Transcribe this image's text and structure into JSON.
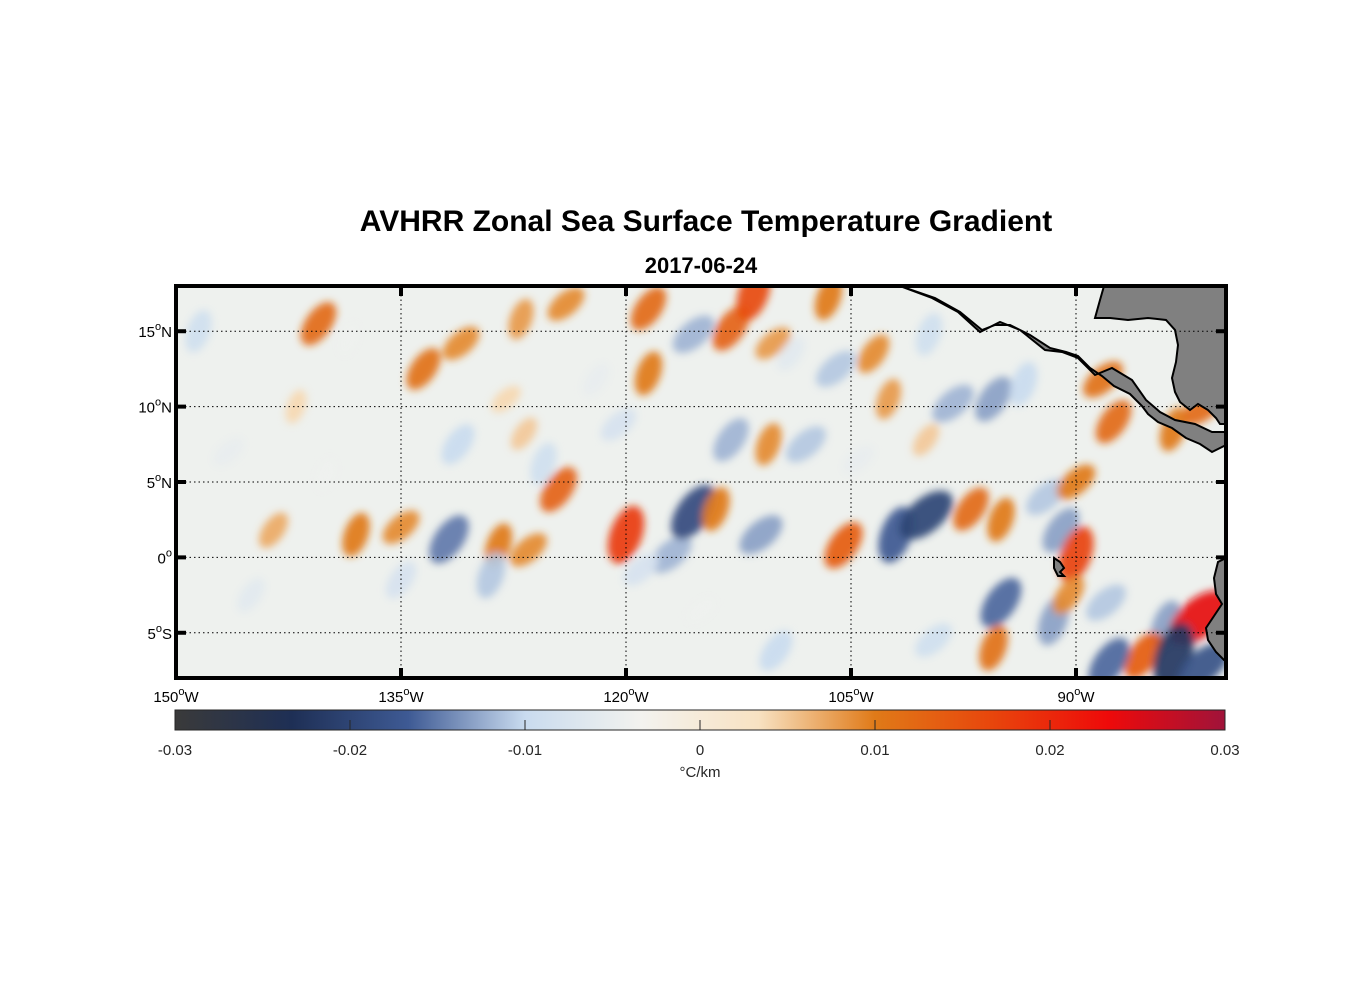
{
  "chart_data": {
    "type": "heatmap",
    "title": "AVHRR Zonal Sea Surface Temperature Gradient",
    "subtitle": "2017-06-24",
    "lon_range": [
      -150,
      -80
    ],
    "lat_range": [
      -8,
      18
    ],
    "lon_ticks": [
      {
        "value": -150,
        "num": "150",
        "hem": "W"
      },
      {
        "value": -135,
        "num": "135",
        "hem": "W"
      },
      {
        "value": -120,
        "num": "120",
        "hem": "W"
      },
      {
        "value": -105,
        "num": "105",
        "hem": "W"
      },
      {
        "value": -90,
        "num": "90",
        "hem": "W"
      }
    ],
    "lat_ticks": [
      {
        "value": 15,
        "num": "15",
        "hem": "N"
      },
      {
        "value": 10,
        "num": "10",
        "hem": "N"
      },
      {
        "value": 5,
        "num": "5",
        "hem": "N"
      },
      {
        "value": 0,
        "num": "0",
        "hem": ""
      },
      {
        "value": -5,
        "num": "5",
        "hem": "S"
      }
    ],
    "degree_symbol": "o",
    "grid": "dotted",
    "colorbar": {
      "range": [
        -0.03,
        0.03
      ],
      "ticks": [
        -0.03,
        -0.02,
        -0.01,
        0,
        0.01,
        0.02,
        0.03
      ],
      "tick_labels": [
        "-0.03",
        "-0.02",
        "-0.01",
        "0",
        "0.01",
        "0.02",
        "0.03"
      ],
      "units": "°C/km",
      "colors": [
        "#3a3a3a",
        "#1e2f55",
        "#3e5a94",
        "#c9dbef",
        "#f3f3ef",
        "#f8e2c2",
        "#e07a18",
        "#e8460c",
        "#ee0a0a",
        "#a0133a"
      ]
    },
    "features": [
      {
        "lon": -140.5,
        "lat": 15.5,
        "value": 0.012
      },
      {
        "lon": -138.5,
        "lat": 14.5,
        "value": -0.004
      },
      {
        "lon": -131,
        "lat": 14.2,
        "value": 0.009
      },
      {
        "lon": -133.5,
        "lat": 12.5,
        "value": 0.011
      },
      {
        "lon": -127,
        "lat": 15.8,
        "value": 0.008
      },
      {
        "lon": -124,
        "lat": 16.8,
        "value": 0.009
      },
      {
        "lon": -118.5,
        "lat": 16.5,
        "value": 0.012
      },
      {
        "lon": -118.5,
        "lat": 12.2,
        "value": 0.01
      },
      {
        "lon": -115.5,
        "lat": 14.8,
        "value": -0.012
      },
      {
        "lon": -113,
        "lat": 15.2,
        "value": 0.013
      },
      {
        "lon": -111.5,
        "lat": 17.5,
        "value": 0.016
      },
      {
        "lon": -110.2,
        "lat": 14.2,
        "value": 0.008
      },
      {
        "lon": -109,
        "lat": 13.5,
        "value": -0.006
      },
      {
        "lon": -106.5,
        "lat": 17.2,
        "value": 0.01
      },
      {
        "lon": -106,
        "lat": 12.5,
        "value": -0.011
      },
      {
        "lon": -103.5,
        "lat": 13.5,
        "value": 0.009
      },
      {
        "lon": -99.8,
        "lat": 14.8,
        "value": -0.009
      },
      {
        "lon": -98.2,
        "lat": 10.2,
        "value": -0.012
      },
      {
        "lon": -95.5,
        "lat": 10.5,
        "value": -0.013
      },
      {
        "lon": -93.5,
        "lat": 11.5,
        "value": -0.01
      },
      {
        "lon": -88.2,
        "lat": 11.8,
        "value": 0.011
      },
      {
        "lon": -87.5,
        "lat": 9.0,
        "value": 0.012
      },
      {
        "lon": -83.5,
        "lat": 8.5,
        "value": 0.01
      },
      {
        "lon": -81.5,
        "lat": 10.0,
        "value": 0.012
      },
      {
        "lon": -131.2,
        "lat": 7.5,
        "value": -0.01
      },
      {
        "lon": -125.5,
        "lat": 6.2,
        "value": -0.009
      },
      {
        "lon": -120.5,
        "lat": 8.8,
        "value": -0.008
      },
      {
        "lon": -113,
        "lat": 7.8,
        "value": -0.012
      },
      {
        "lon": -110.5,
        "lat": 7.5,
        "value": 0.009
      },
      {
        "lon": -108,
        "lat": 7.5,
        "value": -0.011
      },
      {
        "lon": -143.5,
        "lat": 1.8,
        "value": 0.007
      },
      {
        "lon": -138,
        "lat": 1.5,
        "value": 0.01
      },
      {
        "lon": -135,
        "lat": 2.0,
        "value": 0.009
      },
      {
        "lon": -131.8,
        "lat": 1.2,
        "value": -0.015
      },
      {
        "lon": -128.5,
        "lat": 0.8,
        "value": 0.01
      },
      {
        "lon": -126.5,
        "lat": 0.5,
        "value": 0.009
      },
      {
        "lon": -124.5,
        "lat": 4.5,
        "value": 0.013
      },
      {
        "lon": -120,
        "lat": 1.5,
        "value": 0.018
      },
      {
        "lon": -117,
        "lat": 0.2,
        "value": -0.012
      },
      {
        "lon": -115.5,
        "lat": 3.0,
        "value": -0.019
      },
      {
        "lon": -114,
        "lat": 3.2,
        "value": 0.01
      },
      {
        "lon": -111,
        "lat": 1.5,
        "value": -0.013
      },
      {
        "lon": -105.5,
        "lat": 0.8,
        "value": 0.014
      },
      {
        "lon": -102,
        "lat": 1.5,
        "value": -0.017
      },
      {
        "lon": -100,
        "lat": 2.8,
        "value": -0.02
      },
      {
        "lon": -97,
        "lat": 3.2,
        "value": 0.012
      },
      {
        "lon": -95,
        "lat": 2.5,
        "value": 0.01
      },
      {
        "lon": -92,
        "lat": 4.0,
        "value": -0.011
      },
      {
        "lon": -91,
        "lat": 1.8,
        "value": -0.013
      },
      {
        "lon": -90,
        "lat": 0.2,
        "value": 0.017
      },
      {
        "lon": -90,
        "lat": 5.0,
        "value": 0.01
      },
      {
        "lon": -135,
        "lat": -1.5,
        "value": -0.008
      },
      {
        "lon": -129,
        "lat": -1.2,
        "value": -0.011
      },
      {
        "lon": -119,
        "lat": -0.8,
        "value": -0.008
      },
      {
        "lon": -95,
        "lat": -3.0,
        "value": -0.016
      },
      {
        "lon": -91.5,
        "lat": -4.2,
        "value": -0.013
      },
      {
        "lon": -88,
        "lat": -3.0,
        "value": -0.011
      },
      {
        "lon": -90.5,
        "lat": -2.5,
        "value": 0.009
      },
      {
        "lon": -84,
        "lat": -4.5,
        "value": -0.013
      },
      {
        "lon": -81.8,
        "lat": -4.0,
        "value": 0.024
      },
      {
        "lon": -85.5,
        "lat": -6.5,
        "value": 0.014
      },
      {
        "lon": -83.5,
        "lat": -6.5,
        "value": -0.022
      },
      {
        "lon": -81.5,
        "lat": -7.2,
        "value": -0.018
      },
      {
        "lon": -87.8,
        "lat": -7.0,
        "value": -0.016
      },
      {
        "lon": -95.5,
        "lat": -6.0,
        "value": 0.011
      },
      {
        "lon": -99.5,
        "lat": -5.5,
        "value": -0.009
      },
      {
        "lon": -110,
        "lat": -6.2,
        "value": -0.01
      },
      {
        "lon": -148.5,
        "lat": 15.0,
        "value": -0.009
      },
      {
        "lon": -146.5,
        "lat": 7.0,
        "value": -0.005
      },
      {
        "lon": -145,
        "lat": -2.5,
        "value": -0.006
      },
      {
        "lon": -142,
        "lat": 10.0,
        "value": 0.004
      },
      {
        "lon": -128,
        "lat": 10.5,
        "value": 0.004
      },
      {
        "lon": -122,
        "lat": 11.8,
        "value": -0.005
      },
      {
        "lon": -102.5,
        "lat": 10.5,
        "value": 0.008
      },
      {
        "lon": -104.5,
        "lat": 6.5,
        "value": -0.005
      },
      {
        "lon": -126.8,
        "lat": 8.2,
        "value": 0.005
      },
      {
        "lon": -140,
        "lat": 5.5,
        "value": -0.004
      },
      {
        "lon": -115,
        "lat": -3.5,
        "value": -0.004
      },
      {
        "lon": -100,
        "lat": 7.8,
        "value": 0.005
      }
    ]
  }
}
